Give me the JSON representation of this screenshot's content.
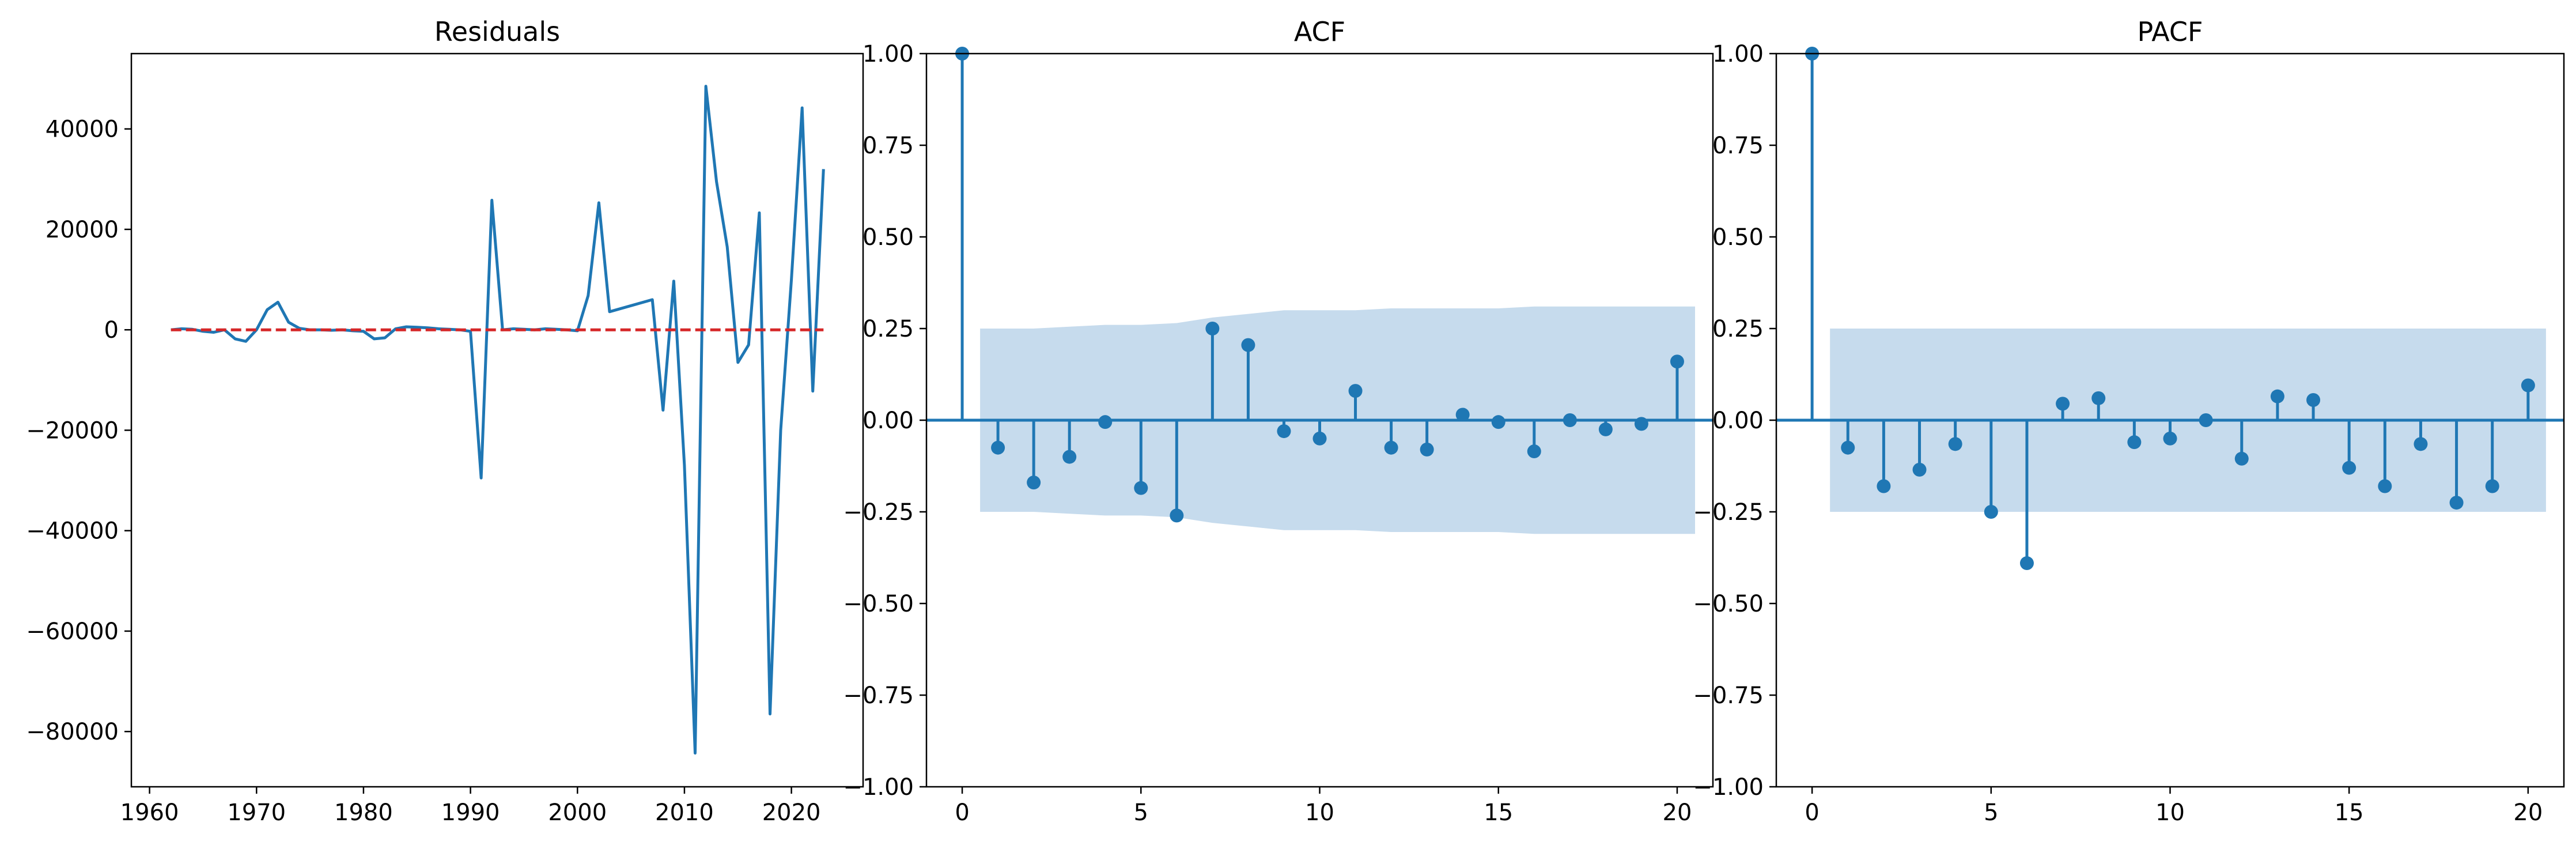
{
  "colors": {
    "series": "#1f77b4",
    "zero_line": "#d62728",
    "confidence_band": "#c6dbed",
    "axis": "#000000"
  },
  "chart_data": [
    {
      "type": "line",
      "title": "Residuals",
      "xlabel": "",
      "ylabel": "",
      "xlim": [
        1958.3,
        2026.7
      ],
      "ylim": [
        -91000,
        55000
      ],
      "xticks": [
        1960,
        1970,
        1980,
        1990,
        2000,
        2010,
        2020
      ],
      "xtick_labels": [
        "1960",
        "1970",
        "1980",
        "1990",
        "2000",
        "2010",
        "2020"
      ],
      "yticks": [
        40000,
        20000,
        0,
        -20000,
        -40000,
        -60000,
        -80000
      ],
      "ytick_labels": [
        "40000",
        "20000",
        "0",
        "−20000",
        "−40000",
        "−60000",
        "−80000"
      ],
      "grid": false,
      "series": [
        {
          "style": "solid",
          "x": [
            1962,
            1963,
            1964,
            1965,
            1966,
            1967,
            1968,
            1969,
            1970,
            1971,
            1972,
            1973,
            1974,
            1975,
            1976,
            1977,
            1978,
            1979,
            1980,
            1981,
            1982,
            1983,
            1984,
            1985,
            1986,
            1987,
            1988,
            1989,
            1990,
            1991,
            1992,
            1993,
            1994,
            1995,
            1996,
            1997,
            1998,
            1999,
            2000,
            2001,
            2002,
            2003,
            2007,
            2008,
            2009,
            2010,
            2011,
            2012,
            2013,
            2014,
            2015,
            2016,
            2017,
            2018,
            2019,
            2020,
            2021,
            2022,
            2023
          ],
          "y": [
            0,
            200,
            100,
            -300,
            -500,
            0,
            -1800,
            -2300,
            0,
            4000,
            5500,
            1500,
            300,
            0,
            0,
            -100,
            0,
            -200,
            -300,
            -1800,
            -1600,
            200,
            600,
            500,
            400,
            200,
            100,
            0,
            -300,
            -29500,
            25800,
            0,
            200,
            100,
            0,
            200,
            100,
            0,
            -200,
            6800,
            25300,
            3600,
            6000,
            -16000,
            9700,
            -27000,
            -84300,
            48500,
            29500,
            16500,
            -6500,
            -3000,
            23300,
            -76500,
            -20000,
            10000,
            44200,
            -12200,
            32000
          ]
        },
        {
          "style": "dashed",
          "x": [
            1962,
            2023
          ],
          "y": [
            0,
            0
          ]
        }
      ]
    },
    {
      "type": "stem",
      "title": "ACF",
      "xlabel": "",
      "ylabel": "",
      "xlim": [
        -1,
        21
      ],
      "ylim": [
        -1.0,
        1.0
      ],
      "xticks": [
        0,
        5,
        10,
        15,
        20
      ],
      "xtick_labels": [
        "0",
        "5",
        "10",
        "15",
        "20"
      ],
      "yticks": [
        1.0,
        0.75,
        0.5,
        0.25,
        0.0,
        -0.25,
        -0.5,
        -0.75,
        -1.0
      ],
      "ytick_labels": [
        "1.00",
        "0.75",
        "0.50",
        "0.25",
        "0.00",
        "−0.25",
        "−0.50",
        "−0.75",
        "−1.00"
      ],
      "grid": false,
      "lags": [
        0,
        1,
        2,
        3,
        4,
        5,
        6,
        7,
        8,
        9,
        10,
        11,
        12,
        13,
        14,
        15,
        16,
        17,
        18,
        19,
        20
      ],
      "values": [
        1.0,
        -0.075,
        -0.17,
        -0.1,
        -0.005,
        -0.185,
        -0.26,
        0.25,
        0.205,
        -0.03,
        -0.05,
        0.08,
        -0.075,
        -0.08,
        0.015,
        -0.005,
        -0.085,
        0.0,
        -0.025,
        -0.01,
        0.16
      ],
      "confidence_band": {
        "lags": [
          0.5,
          1,
          2,
          3,
          4,
          5,
          6,
          7,
          8,
          9,
          10,
          11,
          12,
          13,
          14,
          15,
          16,
          17,
          18,
          19,
          20,
          20.5
        ],
        "upper": [
          0.25,
          0.25,
          0.25,
          0.255,
          0.26,
          0.26,
          0.265,
          0.28,
          0.29,
          0.3,
          0.3,
          0.3,
          0.305,
          0.305,
          0.305,
          0.305,
          0.31,
          0.31,
          0.31,
          0.31,
          0.31,
          0.31
        ]
      }
    },
    {
      "type": "stem",
      "title": "PACF",
      "xlabel": "",
      "ylabel": "",
      "xlim": [
        -1,
        21
      ],
      "ylim": [
        -1.0,
        1.0
      ],
      "xticks": [
        0,
        5,
        10,
        15,
        20
      ],
      "xtick_labels": [
        "0",
        "5",
        "10",
        "15",
        "20"
      ],
      "yticks": [
        1.0,
        0.75,
        0.5,
        0.25,
        0.0,
        -0.25,
        -0.5,
        -0.75,
        -1.0
      ],
      "ytick_labels": [
        "1.00",
        "0.75",
        "0.50",
        "0.25",
        "0.00",
        "−0.25",
        "−0.50",
        "−0.75",
        "−1.00"
      ],
      "grid": false,
      "lags": [
        0,
        1,
        2,
        3,
        4,
        5,
        6,
        7,
        8,
        9,
        10,
        11,
        12,
        13,
        14,
        15,
        16,
        17,
        18,
        19,
        20
      ],
      "values": [
        1.0,
        -0.075,
        -0.18,
        -0.135,
        -0.065,
        -0.25,
        -0.39,
        0.045,
        0.06,
        -0.06,
        -0.05,
        0.0,
        -0.105,
        0.065,
        0.055,
        -0.13,
        -0.18,
        -0.065,
        -0.225,
        -0.18,
        0.095
      ],
      "confidence_band": {
        "lags": [
          0.5,
          20.5
        ],
        "upper": [
          0.25,
          0.25
        ]
      }
    }
  ]
}
